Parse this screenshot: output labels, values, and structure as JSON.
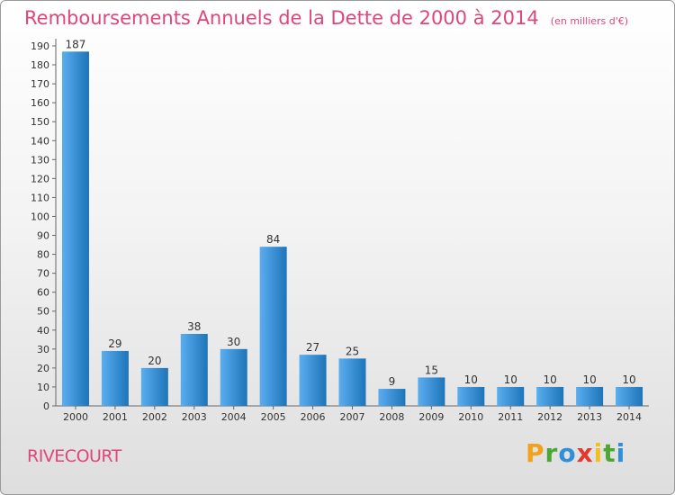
{
  "header": {
    "title": "Remboursements Annuels de la Dette de 2000 à 2014",
    "unit": "(en milliers d'€)"
  },
  "footer": {
    "commune": "RIVECOURT",
    "brand_letters": [
      "P",
      "r",
      "o",
      "x",
      "i",
      "t",
      "i"
    ]
  },
  "colors": {
    "title": "#e0457b",
    "bar_light": "#5aaef0",
    "bar_dark": "#1d74b8",
    "brand": [
      "#f0a21c",
      "#4aa832",
      "#2f8fd8",
      "#e03a2f",
      "#f0c020",
      "#4aa832",
      "#2f8fd8"
    ]
  },
  "chart_data": {
    "type": "bar",
    "title": "Remboursements Annuels de la Dette de 2000 à 2014",
    "ylabel": "",
    "xlabel": "",
    "categories": [
      "2000",
      "2001",
      "2002",
      "2003",
      "2004",
      "2005",
      "2006",
      "2007",
      "2008",
      "2009",
      "2010",
      "2011",
      "2012",
      "2013",
      "2014"
    ],
    "values": [
      187,
      29,
      20,
      38,
      30,
      84,
      27,
      25,
      9,
      15,
      10,
      10,
      10,
      10,
      10
    ],
    "ylim": [
      0,
      190
    ],
    "yticks": [
      0,
      10,
      20,
      30,
      40,
      50,
      60,
      70,
      80,
      90,
      100,
      110,
      120,
      130,
      140,
      150,
      160,
      170,
      180,
      190
    ],
    "grid": false,
    "legend": "none"
  }
}
